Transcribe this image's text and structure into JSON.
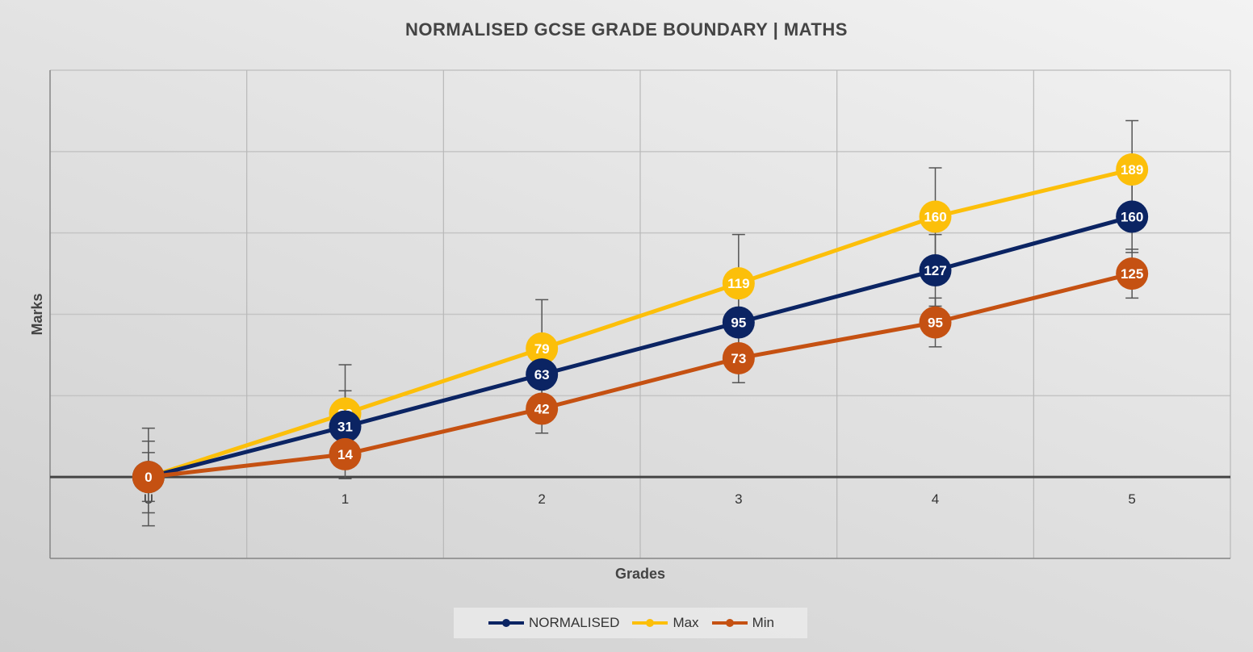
{
  "chart_data": {
    "type": "line",
    "title": "NORMALISED GCSE GRADE BOUNDARY | MATHS",
    "xlabel": "Grades",
    "ylabel": "Marks",
    "categories": [
      "U",
      "1",
      "2",
      "3",
      "4",
      "5"
    ],
    "ylim": [
      -50,
      250
    ],
    "grid": true,
    "legend_position": "bottom",
    "series": [
      {
        "name": "NORMALISED",
        "color": "#0b2463",
        "values": [
          0,
          31,
          63,
          95,
          127,
          160
        ],
        "error": 22
      },
      {
        "name": "Max",
        "color": "#fcbf0a",
        "values": [
          0,
          39,
          79,
          119,
          160,
          189
        ],
        "error": 30
      },
      {
        "name": "Min",
        "color": "#c55112",
        "values": [
          0,
          14,
          42,
          73,
          95,
          125
        ],
        "error": 15
      }
    ]
  }
}
